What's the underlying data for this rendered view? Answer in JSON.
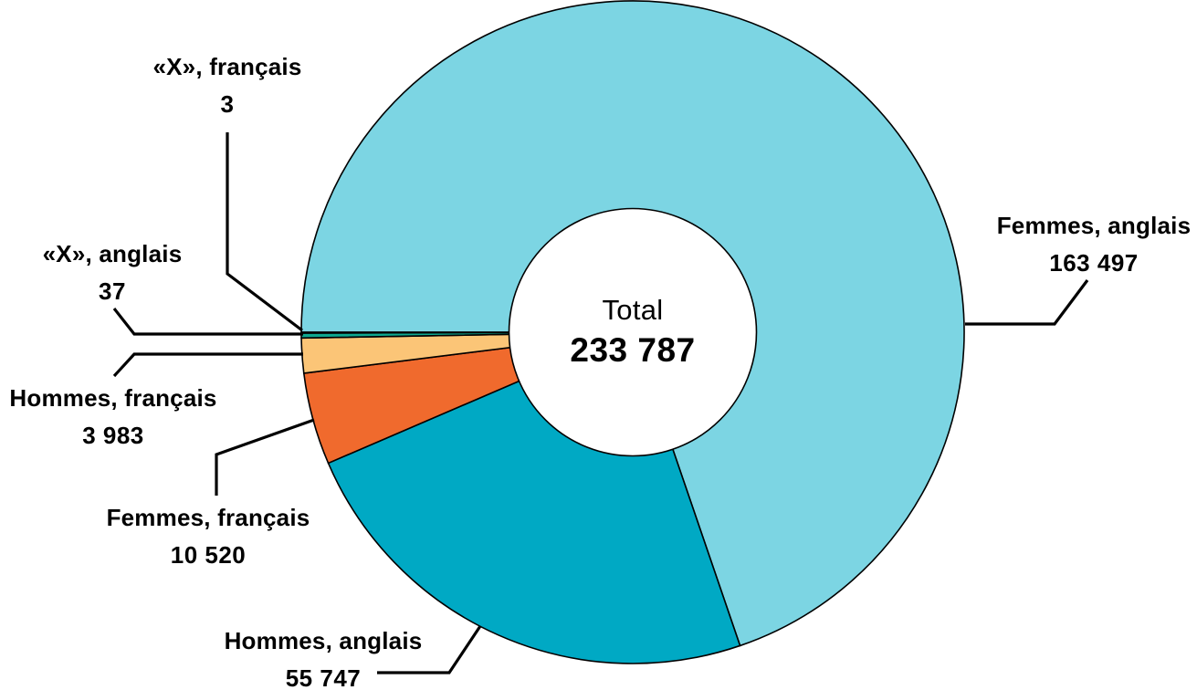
{
  "chart_data": {
    "type": "pie",
    "variant": "donut",
    "direction": "clockwise",
    "start_angle_compass_deg": 270,
    "stroke_color": "#000000",
    "background": "#ffffff",
    "center": {
      "label": "Total",
      "value": 233787,
      "value_display": "233 787"
    },
    "slices": [
      {
        "label": "Femmes, anglais",
        "value": 163497,
        "value_display": "163 497",
        "color": "#7CD5E3"
      },
      {
        "label": "Hommes, anglais",
        "value": 55747,
        "value_display": "55 747",
        "color": "#00A9C4"
      },
      {
        "label": "Femmes, français",
        "value": 10520,
        "value_display": "10 520",
        "color": "#F06A2D"
      },
      {
        "label": "Hommes, français",
        "value": 3983,
        "value_display": "3 983",
        "color": "#FBC577"
      },
      {
        "label": "«X», anglais",
        "value": 37,
        "value_display": "37",
        "color": "#0DA78F",
        "min_render_deg": 0.85
      },
      {
        "label": "«X», français",
        "value": 3,
        "value_display": "3",
        "color": "#0DA78F",
        "min_render_deg": 0.15
      }
    ]
  }
}
